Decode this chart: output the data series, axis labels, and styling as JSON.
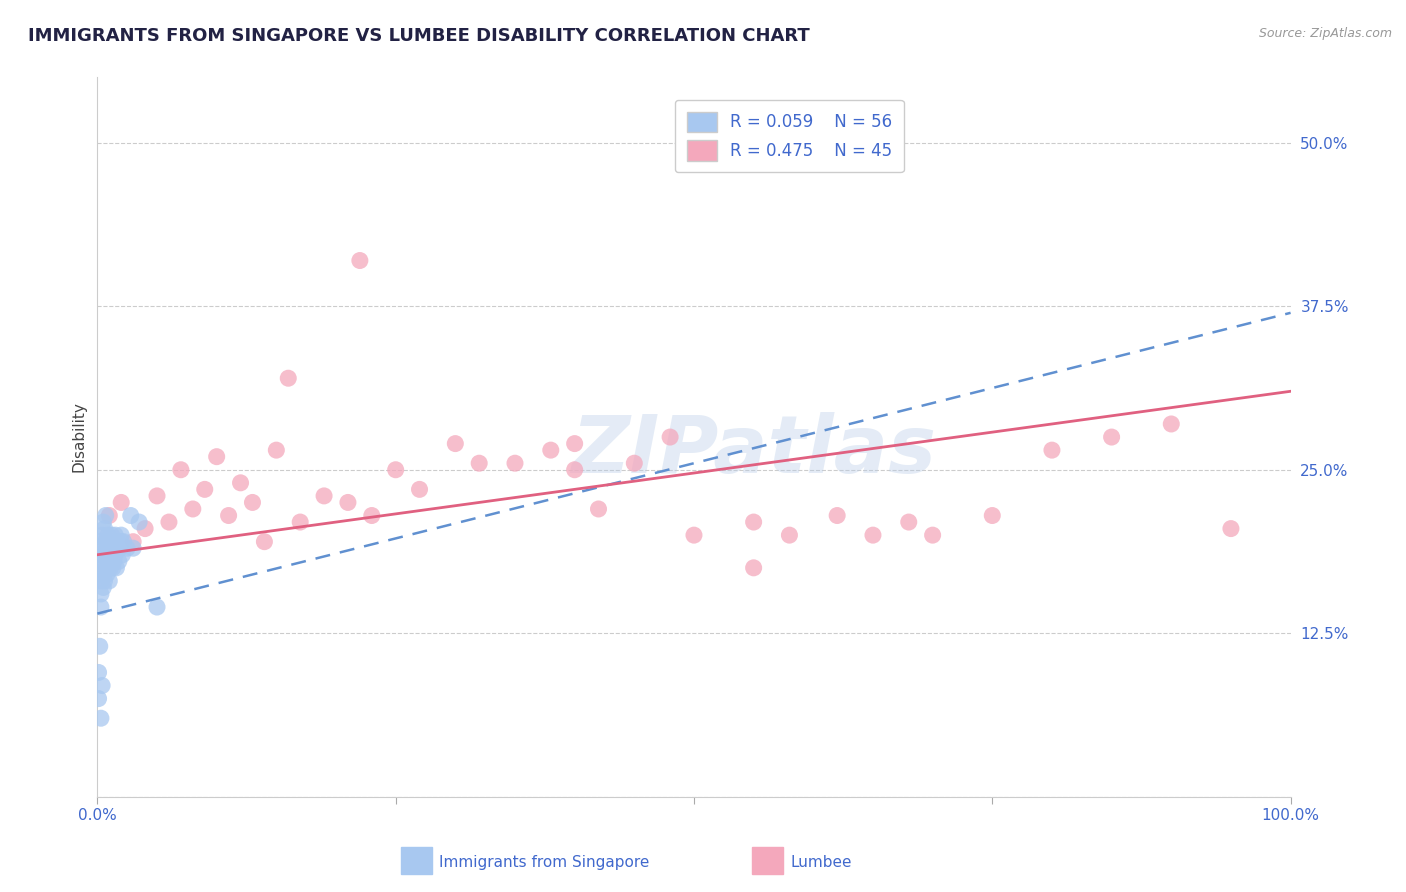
{
  "title": "IMMIGRANTS FROM SINGAPORE VS LUMBEE DISABILITY CORRELATION CHART",
  "source": "Source: ZipAtlas.com",
  "xlabel_blue": "Immigrants from Singapore",
  "xlabel_pink": "Lumbee",
  "ylabel": "Disability",
  "watermark": "ZIPatlas",
  "xlim": [
    0.0,
    1.0
  ],
  "ylim": [
    0.0,
    0.55
  ],
  "xticks": [
    0.0,
    0.25,
    0.5,
    0.75,
    1.0
  ],
  "xticklabels": [
    "0.0%",
    "",
    "",
    "",
    "100.0%"
  ],
  "yticks": [
    0.0,
    0.125,
    0.25,
    0.375,
    0.5
  ],
  "yticklabels": [
    "",
    "12.5%",
    "25.0%",
    "37.5%",
    "50.0%"
  ],
  "blue_R": 0.059,
  "blue_N": 56,
  "pink_R": 0.475,
  "pink_N": 45,
  "blue_color": "#a8c8f0",
  "pink_color": "#f4a8bc",
  "blue_line_color": "#6090d0",
  "pink_line_color": "#e06080",
  "title_color": "#222244",
  "axis_label_color": "#4169cd",
  "grid_color": "#cccccc",
  "background_color": "#ffffff",
  "blue_scatter_x": [
    0.001,
    0.002,
    0.002,
    0.003,
    0.003,
    0.003,
    0.004,
    0.004,
    0.004,
    0.005,
    0.005,
    0.005,
    0.006,
    0.006,
    0.006,
    0.007,
    0.007,
    0.007,
    0.008,
    0.008,
    0.009,
    0.009,
    0.009,
    0.01,
    0.01,
    0.01,
    0.011,
    0.011,
    0.012,
    0.012,
    0.013,
    0.013,
    0.014,
    0.014,
    0.015,
    0.015,
    0.016,
    0.016,
    0.017,
    0.018,
    0.018,
    0.019,
    0.02,
    0.02,
    0.021,
    0.022,
    0.025,
    0.028,
    0.03,
    0.035,
    0.001,
    0.001,
    0.002,
    0.003,
    0.004,
    0.05
  ],
  "blue_scatter_y": [
    0.185,
    0.195,
    0.175,
    0.165,
    0.155,
    0.145,
    0.2,
    0.19,
    0.17,
    0.21,
    0.18,
    0.16,
    0.205,
    0.185,
    0.165,
    0.215,
    0.195,
    0.175,
    0.195,
    0.17,
    0.185,
    0.2,
    0.175,
    0.19,
    0.18,
    0.165,
    0.195,
    0.175,
    0.185,
    0.2,
    0.19,
    0.175,
    0.195,
    0.18,
    0.2,
    0.185,
    0.195,
    0.175,
    0.195,
    0.19,
    0.18,
    0.19,
    0.2,
    0.195,
    0.185,
    0.195,
    0.19,
    0.215,
    0.19,
    0.21,
    0.095,
    0.075,
    0.115,
    0.06,
    0.085,
    0.145
  ],
  "pink_scatter_x": [
    0.01,
    0.02,
    0.03,
    0.04,
    0.05,
    0.06,
    0.07,
    0.08,
    0.09,
    0.1,
    0.11,
    0.12,
    0.13,
    0.14,
    0.15,
    0.17,
    0.19,
    0.21,
    0.23,
    0.25,
    0.27,
    0.3,
    0.32,
    0.35,
    0.38,
    0.4,
    0.42,
    0.45,
    0.48,
    0.5,
    0.55,
    0.58,
    0.62,
    0.65,
    0.68,
    0.7,
    0.75,
    0.8,
    0.85,
    0.9,
    0.95,
    0.22,
    0.16,
    0.55,
    0.4
  ],
  "pink_scatter_y": [
    0.215,
    0.225,
    0.195,
    0.205,
    0.23,
    0.21,
    0.25,
    0.22,
    0.235,
    0.26,
    0.215,
    0.24,
    0.225,
    0.195,
    0.265,
    0.21,
    0.23,
    0.225,
    0.215,
    0.25,
    0.235,
    0.27,
    0.255,
    0.255,
    0.265,
    0.25,
    0.22,
    0.255,
    0.275,
    0.2,
    0.21,
    0.2,
    0.215,
    0.2,
    0.21,
    0.2,
    0.215,
    0.265,
    0.275,
    0.285,
    0.205,
    0.41,
    0.32,
    0.175,
    0.27
  ],
  "blue_line_x0": 0.0,
  "blue_line_y0": 0.14,
  "blue_line_x1": 1.0,
  "blue_line_y1": 0.37,
  "pink_line_x0": 0.0,
  "pink_line_y0": 0.185,
  "pink_line_x1": 1.0,
  "pink_line_y1": 0.31,
  "title_fontsize": 13,
  "axis_tick_fontsize": 11,
  "legend_fontsize": 12,
  "ylabel_fontsize": 11
}
